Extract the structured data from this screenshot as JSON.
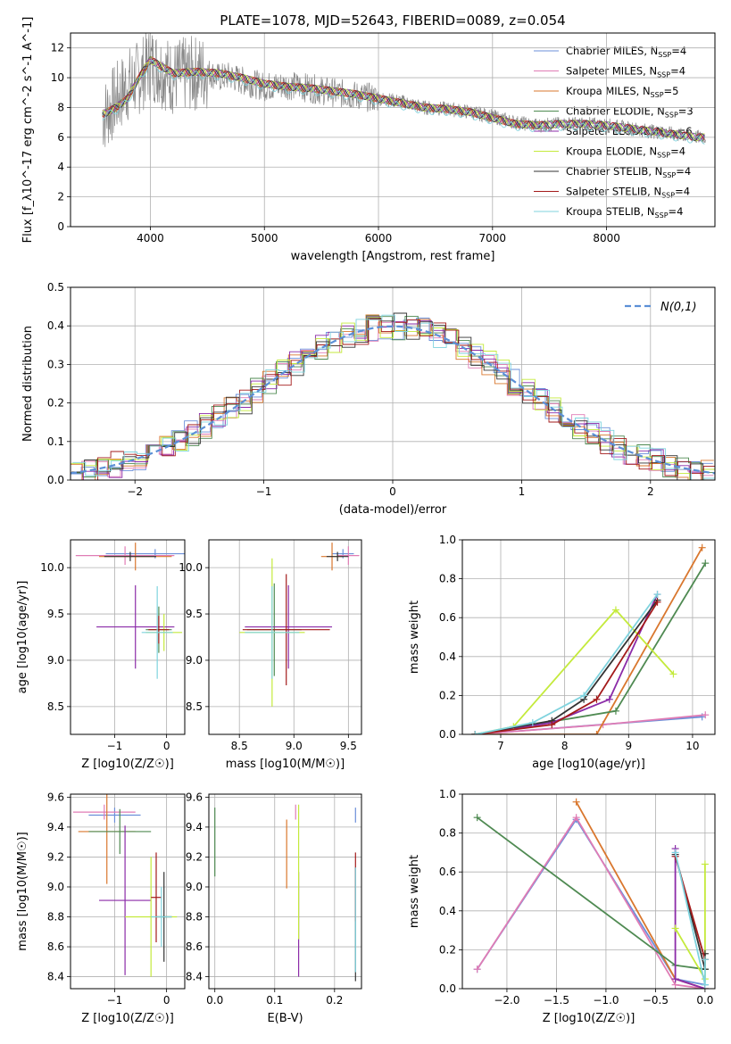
{
  "title": "PLATE=1078, MJD=52643, FIBERID=0089, z=0.054",
  "models": [
    {
      "name": "Chabrier MILES",
      "nssp": "4",
      "color": "#6b8fd9"
    },
    {
      "name": "Salpeter MILES",
      "nssp": "4",
      "color": "#e07cb5"
    },
    {
      "name": "Kroupa MILES",
      "nssp": "5",
      "color": "#d9772e"
    },
    {
      "name": "Chabrier ELODIE",
      "nssp": "3",
      "color": "#4f8a52"
    },
    {
      "name": "Salpeter ELODIE",
      "nssp": "6",
      "color": "#8b2ba8"
    },
    {
      "name": "Kroupa ELODIE",
      "nssp": "4",
      "color": "#c4ea3c"
    },
    {
      "name": "Chabrier STELIB",
      "nssp": "4",
      "color": "#333333"
    },
    {
      "name": "Salpeter STELIB",
      "nssp": "4",
      "color": "#a31a1a"
    },
    {
      "name": "Kroupa STELIB",
      "nssp": "4",
      "color": "#7fd3de"
    }
  ],
  "chart_data": [
    {
      "id": "spectrum",
      "type": "line",
      "xlabel": "wavelength [Angstrom, rest frame]",
      "ylabel": "Flux [f_λ10^-17 erg cm^-2 s^-1 A^-1]",
      "xlim": [
        3300,
        8950
      ],
      "ylim": [
        0,
        13
      ],
      "xticks": [
        4000,
        5000,
        6000,
        7000,
        8000
      ],
      "yticks": [
        0,
        2,
        4,
        6,
        8,
        10,
        12
      ],
      "data_color": "#888888",
      "data_x": [
        3600,
        3700,
        3800,
        3900,
        4000,
        4100,
        4200,
        4300,
        4400,
        4500,
        4600,
        4700,
        4800,
        4900,
        5000,
        5200,
        5400,
        5600,
        5800,
        6000,
        6200,
        6400,
        6600,
        6800,
        7000,
        7200,
        7400,
        7600,
        7800,
        8000,
        8200,
        8400,
        8600,
        8800
      ],
      "data_y": [
        7.5,
        8.5,
        9.5,
        10.0,
        11.0,
        10.5,
        10.0,
        10.2,
        10.3,
        10.4,
        10.0,
        10.1,
        9.8,
        9.6,
        9.4,
        9.5,
        9.3,
        9.0,
        8.8,
        8.6,
        8.4,
        8.0,
        7.9,
        7.7,
        7.4,
        7.0,
        6.8,
        6.9,
        6.9,
        6.8,
        6.6,
        6.4,
        6.2,
        6.0
      ],
      "model_x": [
        3600,
        3700,
        3800,
        3900,
        4000,
        4200,
        4400,
        4600,
        4800,
        5000,
        5200,
        5400,
        5600,
        5800,
        6000,
        6200,
        6400,
        6600,
        6800,
        7000,
        7200,
        7400,
        7600,
        7800,
        8000,
        8200,
        8400,
        8600,
        8800
      ],
      "model_y": [
        7.6,
        8.0,
        8.6,
        10.0,
        11.2,
        10.3,
        10.4,
        10.3,
        10.0,
        9.6,
        9.4,
        9.3,
        9.1,
        8.9,
        8.6,
        8.3,
        8.0,
        7.9,
        7.7,
        7.3,
        6.9,
        6.8,
        6.9,
        6.9,
        6.8,
        6.6,
        6.4,
        6.2,
        6.0
      ]
    },
    {
      "id": "residuals",
      "type": "histogram",
      "xlabel": "(data-model)/error",
      "ylabel": "Normed distribution",
      "xlim": [
        -2.5,
        2.5
      ],
      "ylim": [
        0,
        0.5
      ],
      "xticks": [
        -2,
        -1,
        0,
        1,
        2
      ],
      "yticks": [
        0.0,
        0.1,
        0.2,
        0.3,
        0.4,
        0.5
      ],
      "reference_label": "N(0,1)",
      "reference_color": "#5b8fd6"
    },
    {
      "id": "age_vs_Z",
      "type": "scatter",
      "xlabel": "Z [log10(Z/Z☉)]",
      "ylabel": "age [log10(age/yr)]",
      "xlim": [
        -1.85,
        0.35
      ],
      "ylim": [
        8.2,
        10.3
      ],
      "xticks": [
        -1,
        0
      ],
      "yticks": [
        8.5,
        9.0,
        9.5,
        10.0
      ],
      "points": [
        {
          "model": 0,
          "x": -0.22,
          "y": 10.15,
          "xerr": 0.95,
          "yerr": 0.05
        },
        {
          "model": 1,
          "x": -0.8,
          "y": 10.13,
          "xerr": 0.95,
          "yerr": 0.1
        },
        {
          "model": 2,
          "x": -0.6,
          "y": 10.12,
          "xerr": 0.7,
          "yerr": 0.15
        },
        {
          "model": 3,
          "x": -0.15,
          "y": 9.33,
          "xerr": 0.25,
          "yerr": 0.25
        },
        {
          "model": 4,
          "x": -0.6,
          "y": 9.36,
          "xerr": 0.75,
          "yerr": 0.45
        },
        {
          "model": 5,
          "x": -0.05,
          "y": 9.3,
          "xerr": 0.35,
          "yerr": 0.2
        },
        {
          "model": 6,
          "x": -0.7,
          "y": 10.12,
          "xerr": 0.5,
          "yerr": 0.05
        },
        {
          "model": 7,
          "x": -0.15,
          "y": 9.33,
          "xerr": 0.2,
          "yerr": 0.15
        },
        {
          "model": 8,
          "x": -0.18,
          "y": 9.3,
          "xerr": 0.3,
          "yerr": 0.5
        }
      ]
    },
    {
      "id": "age_vs_mass",
      "type": "scatter",
      "xlabel": "mass [log10(M/M☉)]",
      "ylabel": "",
      "xlim": [
        8.22,
        9.62
      ],
      "ylim": [
        8.2,
        10.3
      ],
      "xticks": [
        8.5,
        9.0,
        9.5
      ],
      "yticks": [
        8.5,
        9.0,
        9.5,
        10.0
      ],
      "points": [
        {
          "model": 0,
          "x": 9.45,
          "y": 10.15,
          "xerr": 0.1,
          "yerr": 0.05
        },
        {
          "model": 1,
          "x": 9.5,
          "y": 10.13,
          "xerr": 0.1,
          "yerr": 0.1
        },
        {
          "model": 2,
          "x": 9.35,
          "y": 10.12,
          "xerr": 0.1,
          "yerr": 0.15
        },
        {
          "model": 3,
          "x": 8.82,
          "y": 9.33,
          "xerr": 0.25,
          "yerr": 0.5
        },
        {
          "model": 4,
          "x": 8.95,
          "y": 9.36,
          "xerr": 0.4,
          "yerr": 0.45
        },
        {
          "model": 5,
          "x": 8.8,
          "y": 9.3,
          "xerr": 0.3,
          "yerr": 0.8
        },
        {
          "model": 6,
          "x": 9.4,
          "y": 10.12,
          "xerr": 0.1,
          "yerr": 0.05
        },
        {
          "model": 7,
          "x": 8.93,
          "y": 9.33,
          "xerr": 0.4,
          "yerr": 0.6
        },
        {
          "model": 8,
          "x": 8.8,
          "y": 9.3,
          "xerr": 0.25,
          "yerr": 0.5
        }
      ]
    },
    {
      "id": "weight_vs_age",
      "type": "line",
      "xlabel": "age [log10(age/yr)]",
      "ylabel": "mass weight",
      "xlim": [
        6.4,
        10.35
      ],
      "ylim": [
        0,
        1
      ],
      "xticks": [
        7,
        8,
        9,
        10
      ],
      "yticks": [
        0.0,
        0.2,
        0.4,
        0.6,
        0.8,
        1.0
      ],
      "series": [
        {
          "model": 0,
          "x": [
            6.6,
            10.15
          ],
          "y": [
            0.0,
            0.09
          ]
        },
        {
          "model": 1,
          "x": [
            6.6,
            8.6,
            10.2
          ],
          "y": [
            0.0,
            0.05,
            0.1
          ]
        },
        {
          "model": 2,
          "x": [
            6.6,
            8.5,
            10.15
          ],
          "y": [
            0.0,
            0.0,
            0.96
          ]
        },
        {
          "model": 3,
          "x": [
            6.6,
            8.8,
            10.2
          ],
          "y": [
            0.0,
            0.12,
            0.88
          ]
        },
        {
          "model": 4,
          "x": [
            6.6,
            7.8,
            8.7,
            9.45
          ],
          "y": [
            0.0,
            0.06,
            0.18,
            0.72
          ]
        },
        {
          "model": 5,
          "x": [
            6.6,
            7.2,
            8.8,
            9.7
          ],
          "y": [
            0.0,
            0.04,
            0.64,
            0.31
          ]
        },
        {
          "model": 6,
          "x": [
            6.6,
            7.8,
            8.3,
            9.45
          ],
          "y": [
            0.0,
            0.07,
            0.18,
            0.69
          ]
        },
        {
          "model": 7,
          "x": [
            6.6,
            7.8,
            8.5,
            9.45
          ],
          "y": [
            0.0,
            0.05,
            0.18,
            0.68
          ]
        },
        {
          "model": 8,
          "x": [
            6.6,
            7.5,
            8.3,
            9.45
          ],
          "y": [
            0.0,
            0.06,
            0.2,
            0.72
          ]
        }
      ]
    },
    {
      "id": "mass_vs_Z",
      "type": "scatter",
      "xlabel": "Z [log10(Z/Z☉)]",
      "ylabel": "mass [log10(M/M☉)]",
      "xlim": [
        -1.85,
        0.35
      ],
      "ylim": [
        8.32,
        9.62
      ],
      "xticks": [
        -1,
        0
      ],
      "yticks": [
        8.4,
        8.6,
        8.8,
        9.0,
        9.2,
        9.4,
        9.6
      ],
      "points": [
        {
          "model": 0,
          "x": -1.0,
          "y": 9.48,
          "xerr": 0.5,
          "yerr": 0.05
        },
        {
          "model": 1,
          "x": -1.2,
          "y": 9.5,
          "xerr": 0.6,
          "yerr": 0.05
        },
        {
          "model": 2,
          "x": -1.15,
          "y": 9.37,
          "xerr": 0.55,
          "yerr": 0.35
        },
        {
          "model": 3,
          "x": -0.9,
          "y": 9.37,
          "xerr": 0.6,
          "yerr": 0.15
        },
        {
          "model": 4,
          "x": -0.8,
          "y": 8.91,
          "xerr": 0.5,
          "yerr": 0.5
        },
        {
          "model": 5,
          "x": -0.3,
          "y": 8.8,
          "xerr": 0.5,
          "yerr": 0.4
        },
        {
          "model": 6,
          "x": -0.05,
          "y": 8.8,
          "xerr": 0.15,
          "yerr": 0.3
        },
        {
          "model": 7,
          "x": -0.2,
          "y": 8.93,
          "xerr": 0.1,
          "yerr": 0.3
        },
        {
          "model": 8,
          "x": -0.1,
          "y": 8.8,
          "xerr": 0.2,
          "yerr": 0.2
        }
      ]
    },
    {
      "id": "mass_vs_ebv",
      "type": "scatter",
      "xlabel": "E(B-V)",
      "ylabel": "",
      "xlim": [
        -0.01,
        0.245
      ],
      "ylim": [
        8.32,
        9.62
      ],
      "xticks": [
        0.0,
        0.1,
        0.2
      ],
      "yticks": [
        8.4,
        8.6,
        8.8,
        9.0,
        9.2,
        9.4,
        9.6
      ],
      "points": [
        {
          "model": 0,
          "x": 0.235,
          "y": 9.48,
          "xerr": 0,
          "yerr": 0.05
        },
        {
          "model": 1,
          "x": 0.135,
          "y": 9.5,
          "xerr": 0,
          "yerr": 0.05
        },
        {
          "model": 2,
          "x": 0.12,
          "y": 9.22,
          "xerr": 0,
          "yerr": 0.23
        },
        {
          "model": 3,
          "x": 0.0,
          "y": 9.3,
          "xerr": 0,
          "yerr": 0.23
        },
        {
          "model": 4,
          "x": 0.14,
          "y": 8.75,
          "xerr": 0,
          "yerr": 0.35
        },
        {
          "model": 5,
          "x": 0.14,
          "y": 9.1,
          "xerr": 0,
          "yerr": 0.45
        },
        {
          "model": 6,
          "x": 0.235,
          "y": 8.75,
          "xerr": 0,
          "yerr": 0.38
        },
        {
          "model": 7,
          "x": 0.235,
          "y": 9.0,
          "xerr": 0,
          "yerr": 0.23
        },
        {
          "model": 8,
          "x": 0.235,
          "y": 8.78,
          "xerr": 0,
          "yerr": 0.35
        }
      ]
    },
    {
      "id": "weight_vs_Z",
      "type": "line",
      "xlabel": "Z [log10(Z/Z☉)]",
      "ylabel": "mass weight",
      "xlim": [
        -2.45,
        0.1
      ],
      "ylim": [
        0,
        1
      ],
      "xticks": [
        -2.0,
        -1.5,
        -1.0,
        -0.5,
        0.0
      ],
      "yticks": [
        0.0,
        0.2,
        0.4,
        0.6,
        0.8,
        1.0
      ],
      "series": [
        {
          "model": 0,
          "x": [
            -2.3,
            -1.3,
            -0.3,
            0.0
          ],
          "y": [
            0.1,
            0.87,
            0.05,
            0.02
          ]
        },
        {
          "model": 1,
          "x": [
            -2.3,
            -1.3,
            -0.3,
            0.0
          ],
          "y": [
            0.1,
            0.88,
            0.02,
            0.0
          ]
        },
        {
          "model": 2,
          "x": [
            -1.3,
            -0.3,
            0.0
          ],
          "y": [
            0.96,
            0.05,
            0.0
          ]
        },
        {
          "model": 3,
          "x": [
            -2.3,
            -0.3,
            0.0
          ],
          "y": [
            0.88,
            0.12,
            0.1
          ]
        },
        {
          "model": 4,
          "x": [
            -0.3,
            -0.3,
            0.0
          ],
          "y": [
            0.72,
            0.05,
            0.0
          ]
        },
        {
          "model": 5,
          "x": [
            -0.3,
            0.0,
            0.0
          ],
          "y": [
            0.31,
            0.05,
            0.64
          ]
        },
        {
          "model": 6,
          "x": [
            -0.3,
            0.0,
            0.0
          ],
          "y": [
            0.69,
            0.1,
            0.18
          ]
        },
        {
          "model": 7,
          "x": [
            -0.3,
            0.0
          ],
          "y": [
            0.68,
            0.15
          ]
        },
        {
          "model": 8,
          "x": [
            -0.3,
            0.0,
            0.0
          ],
          "y": [
            0.7,
            0.02,
            0.15
          ]
        }
      ]
    }
  ]
}
